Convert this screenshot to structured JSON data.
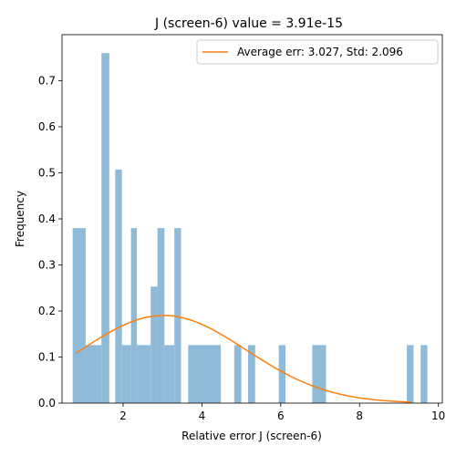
{
  "chart_data": {
    "type": "bar",
    "title": "J (screen-6) value = 3.91e-15",
    "xlabel": "Relative error J (screen-6)",
    "ylabel": "Frequency",
    "xlim": [
      0.45,
      10.1
    ],
    "ylim": [
      0,
      0.8
    ],
    "xticks": [
      2,
      4,
      6,
      8,
      10
    ],
    "yticks": [
      0.0,
      0.1,
      0.2,
      0.3,
      0.4,
      0.5,
      0.6,
      0.7
    ],
    "grid": false,
    "legend": {
      "placement": "top-right",
      "entries": [
        "Average err: 3.027, Std: 2.096"
      ]
    },
    "histogram": {
      "name": "",
      "color": "#8fbbd9",
      "bins": [
        {
          "x0": 0.72,
          "x1": 1.05,
          "y": 0.38
        },
        {
          "x0": 1.05,
          "x1": 1.45,
          "y": 0.126
        },
        {
          "x0": 1.45,
          "x1": 1.65,
          "y": 0.76
        },
        {
          "x0": 1.8,
          "x1": 1.97,
          "y": 0.507
        },
        {
          "x0": 1.97,
          "x1": 2.2,
          "y": 0.126
        },
        {
          "x0": 2.2,
          "x1": 2.35,
          "y": 0.38
        },
        {
          "x0": 2.35,
          "x1": 2.7,
          "y": 0.126
        },
        {
          "x0": 2.7,
          "x1": 2.87,
          "y": 0.253
        },
        {
          "x0": 2.87,
          "x1": 3.05,
          "y": 0.38
        },
        {
          "x0": 3.05,
          "x1": 3.3,
          "y": 0.126
        },
        {
          "x0": 3.3,
          "x1": 3.47,
          "y": 0.38
        },
        {
          "x0": 3.65,
          "x1": 4.48,
          "y": 0.126
        },
        {
          "x0": 4.82,
          "x1": 5.0,
          "y": 0.126
        },
        {
          "x0": 5.17,
          "x1": 5.35,
          "y": 0.126
        },
        {
          "x0": 5.95,
          "x1": 6.12,
          "y": 0.126
        },
        {
          "x0": 6.8,
          "x1": 7.15,
          "y": 0.126
        },
        {
          "x0": 9.2,
          "x1": 9.37,
          "y": 0.126
        },
        {
          "x0": 9.55,
          "x1": 9.72,
          "y": 0.126
        }
      ]
    },
    "curve": {
      "name": "Average err: 3.027, Std: 2.096",
      "color": "#ff7f0e",
      "kind": "normal-pdf",
      "mean": 3.027,
      "std": 2.096,
      "x_range": [
        0.8,
        9.3
      ]
    }
  }
}
